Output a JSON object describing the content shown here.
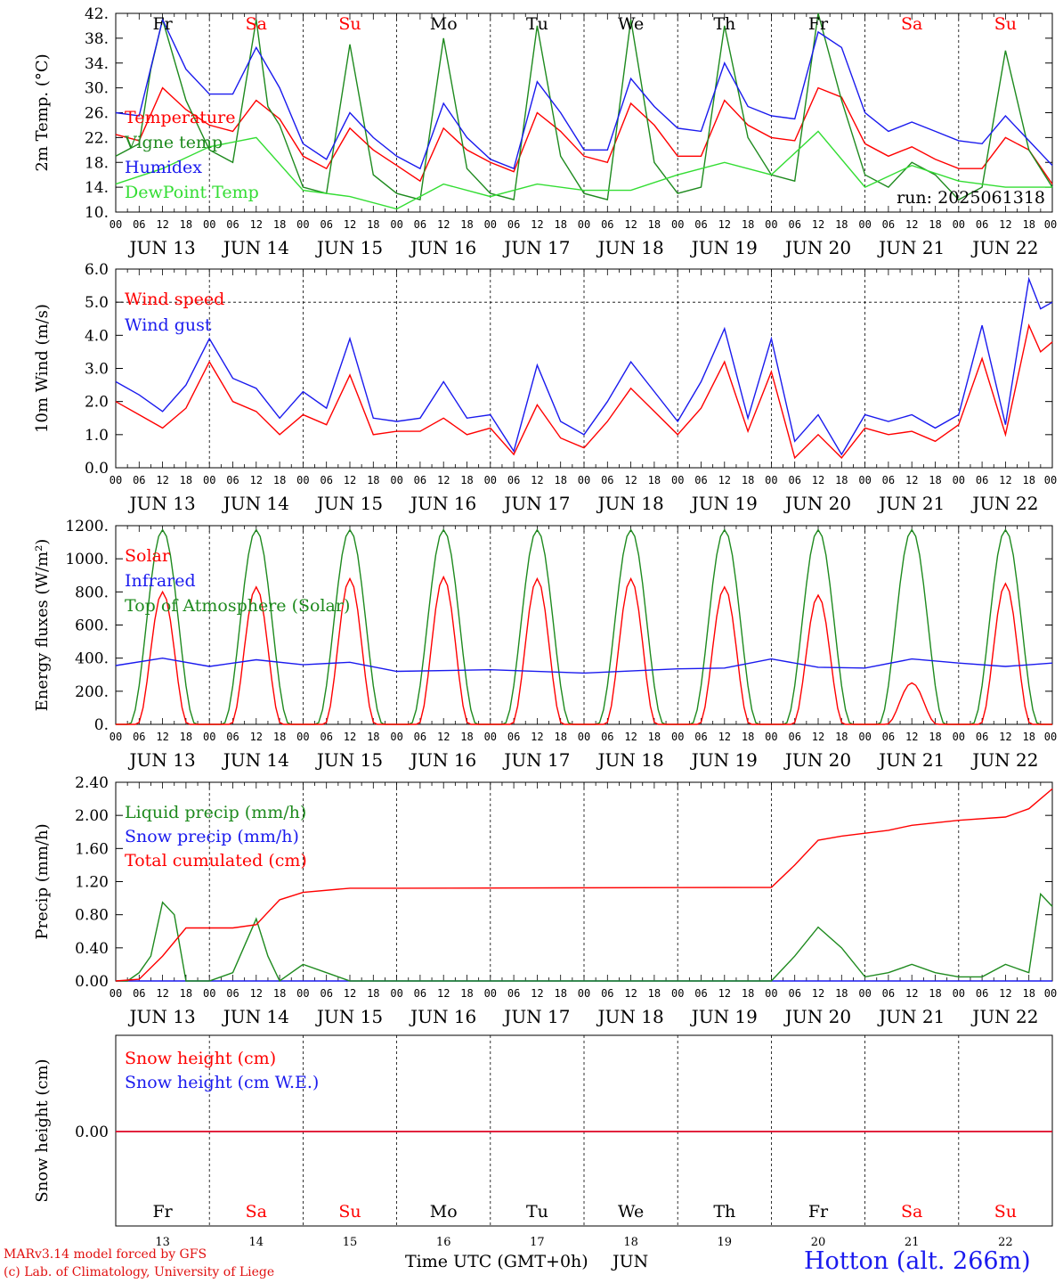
{
  "chart_data": [
    {
      "type": "line",
      "ylabel": "2m Temp. (°C)",
      "ylim": [
        10,
        42
      ],
      "yticks": [
        "10.",
        "14.",
        "18.",
        "22.",
        "26.",
        "30.",
        "34.",
        "38.",
        "42."
      ],
      "grid": "dashed vertical at day boundaries",
      "legend_placement": "left",
      "weekday_labels": [
        "Fr",
        "Sa",
        "Su",
        "Mo",
        "Tu",
        "We",
        "Th",
        "Fr",
        "Sa",
        "Su"
      ],
      "annotation": "run: 2025061318",
      "series": [
        {
          "name": "Temperature",
          "color": "#ff0000",
          "x_hours": [
            0,
            6,
            12,
            18,
            24,
            30,
            36,
            42,
            48,
            54,
            60,
            66,
            72,
            78,
            84,
            90,
            96,
            102,
            108,
            114,
            120,
            126,
            132,
            138,
            144,
            150,
            156,
            162,
            168,
            174,
            180,
            186,
            192,
            198,
            204,
            210,
            216,
            222,
            228,
            234,
            240
          ],
          "values": [
            22.5,
            21.5,
            30,
            26.5,
            24,
            23,
            28,
            25,
            19,
            17,
            23.5,
            20,
            17.5,
            15,
            23.5,
            20,
            18,
            16.5,
            26,
            23,
            19,
            18,
            27.5,
            24,
            19,
            19,
            28,
            24,
            22,
            21.5,
            30,
            28.5,
            21,
            19,
            20.5,
            18.5,
            17,
            17,
            22,
            20,
            14.5
          ]
        },
        {
          "name": "Vigne temp",
          "color": "#1e8a1e",
          "x_hours": [
            0,
            6,
            9,
            12,
            18,
            24,
            30,
            36,
            39,
            42,
            48,
            54,
            60,
            66,
            72,
            78,
            84,
            90,
            96,
            102,
            108,
            114,
            120,
            126,
            132,
            138,
            144,
            150,
            156,
            162,
            168,
            174,
            180,
            186,
            192,
            198,
            204,
            210,
            216,
            222,
            228,
            234,
            240
          ],
          "values": [
            19,
            21,
            33,
            41,
            28,
            20,
            18,
            41,
            27,
            24,
            14,
            13,
            37,
            16,
            13,
            12,
            38,
            17,
            13,
            12,
            40,
            19,
            13,
            12,
            41,
            18,
            13,
            14,
            40,
            22,
            16,
            15,
            42,
            28,
            16,
            14,
            18,
            16,
            12,
            14,
            36,
            20,
            14
          ]
        },
        {
          "name": "Humidex",
          "color": "#1a1aee",
          "x_hours": [
            0,
            6,
            12,
            18,
            24,
            30,
            36,
            42,
            48,
            54,
            60,
            66,
            72,
            78,
            84,
            90,
            96,
            102,
            108,
            114,
            120,
            126,
            132,
            138,
            144,
            150,
            156,
            162,
            168,
            174,
            180,
            186,
            192,
            198,
            204,
            210,
            216,
            222,
            228,
            234,
            240
          ],
          "values": [
            26,
            25.5,
            41,
            33,
            29,
            29,
            36.5,
            30,
            21,
            18.5,
            26,
            22,
            19,
            17,
            27.5,
            22,
            18.5,
            17,
            31,
            26,
            20,
            20,
            31.5,
            27,
            23.5,
            23,
            34,
            27,
            25.5,
            25,
            39,
            36.5,
            26,
            23,
            24.5,
            23,
            21.5,
            21,
            25.5,
            21.5,
            17.5
          ]
        },
        {
          "name": "DewPoint Temp",
          "color": "#33dd33",
          "x_hours": [
            0,
            12,
            24,
            36,
            48,
            60,
            72,
            84,
            96,
            108,
            120,
            132,
            144,
            156,
            168,
            180,
            192,
            204,
            216,
            228,
            240
          ],
          "values": [
            14.5,
            17,
            20.5,
            22,
            13.5,
            12.5,
            10.5,
            14.5,
            12.5,
            14.5,
            13.5,
            13.5,
            16,
            18,
            16,
            23,
            14,
            17.5,
            15,
            14,
            14
          ]
        }
      ]
    },
    {
      "type": "line",
      "ylabel": "10m Wind (m/s)",
      "ylim": [
        0,
        6
      ],
      "yticks": [
        "0.0",
        "1.0",
        "2.0",
        "3.0",
        "4.0",
        "5.0",
        "6.0"
      ],
      "ref_line": 5.0,
      "legend_placement": "left",
      "series": [
        {
          "name": "Wind speed",
          "color": "#ff0000",
          "x_hours": [
            0,
            6,
            12,
            18,
            24,
            30,
            36,
            42,
            48,
            54,
            60,
            66,
            72,
            78,
            84,
            90,
            96,
            102,
            108,
            114,
            120,
            126,
            132,
            138,
            144,
            150,
            156,
            162,
            168,
            174,
            180,
            186,
            192,
            198,
            204,
            210,
            216,
            222,
            228,
            234,
            237,
            240
          ],
          "values": [
            2.0,
            1.6,
            1.2,
            1.8,
            3.2,
            2.0,
            1.7,
            1.0,
            1.6,
            1.3,
            2.8,
            1.0,
            1.1,
            1.1,
            1.5,
            1.0,
            1.2,
            0.4,
            1.9,
            0.9,
            0.6,
            1.4,
            2.4,
            1.7,
            1.0,
            1.8,
            3.2,
            1.1,
            2.9,
            0.3,
            1.0,
            0.3,
            1.2,
            1.0,
            1.1,
            0.8,
            1.3,
            3.3,
            1.0,
            4.3,
            3.5,
            3.8
          ]
        },
        {
          "name": "Wind gust",
          "color": "#1a1aee",
          "x_hours": [
            0,
            6,
            12,
            18,
            24,
            30,
            36,
            42,
            48,
            54,
            60,
            66,
            72,
            78,
            84,
            90,
            96,
            102,
            108,
            114,
            120,
            126,
            132,
            138,
            144,
            150,
            156,
            162,
            168,
            174,
            180,
            186,
            192,
            198,
            204,
            210,
            216,
            222,
            228,
            234,
            237,
            240
          ],
          "values": [
            2.6,
            2.2,
            1.7,
            2.5,
            3.9,
            2.7,
            2.4,
            1.5,
            2.3,
            1.8,
            3.9,
            1.5,
            1.4,
            1.5,
            2.6,
            1.5,
            1.6,
            0.5,
            3.1,
            1.4,
            1.0,
            2.0,
            3.2,
            2.3,
            1.4,
            2.6,
            4.2,
            1.5,
            3.9,
            0.8,
            1.6,
            0.4,
            1.6,
            1.4,
            1.6,
            1.2,
            1.6,
            4.3,
            1.3,
            5.7,
            4.8,
            5.0
          ]
        }
      ]
    },
    {
      "type": "line",
      "ylabel": "Energy fluxes (W/m²)",
      "ylim": [
        0,
        1200
      ],
      "yticks": [
        "0.",
        "200.",
        "400.",
        "600.",
        "800.",
        "1000.",
        "1200."
      ],
      "legend_placement": "left",
      "series": [
        {
          "name": "Solar",
          "color": "#ff0000",
          "day_peaks": [
            800,
            830,
            880,
            890,
            880,
            880,
            830,
            780,
            250,
            850
          ]
        },
        {
          "name": "Infrared",
          "color": "#1a1aee",
          "x_hours": [
            0,
            12,
            24,
            36,
            48,
            60,
            72,
            96,
            120,
            144,
            156,
            168,
            180,
            192,
            204,
            216,
            228,
            240
          ],
          "values": [
            355,
            400,
            350,
            390,
            360,
            375,
            320,
            330,
            310,
            335,
            340,
            395,
            345,
            340,
            395,
            370,
            350,
            370
          ]
        },
        {
          "name": "Top of Atmosphere (Solar)",
          "color": "#1e8a1e",
          "day_peaks": [
            1175,
            1175,
            1175,
            1175,
            1175,
            1175,
            1175,
            1175,
            1175,
            1175
          ]
        }
      ]
    },
    {
      "type": "line",
      "ylabel": "Precip (mm/h)",
      "ylim": [
        0,
        2.4
      ],
      "yticks": [
        "0.00",
        "0.40",
        "0.80",
        "1.20",
        "1.60",
        "2.00",
        "2.40"
      ],
      "legend_placement": "left",
      "series": [
        {
          "name": "Liquid precip (mm/h)",
          "color": "#1e8a1e",
          "x_hours": [
            0,
            3,
            6,
            9,
            12,
            15,
            18,
            24,
            30,
            36,
            39,
            42,
            48,
            54,
            60,
            72,
            96,
            120,
            144,
            168,
            174,
            180,
            186,
            192,
            198,
            204,
            210,
            216,
            222,
            228,
            234,
            237,
            240
          ],
          "values": [
            0,
            0,
            0.1,
            0.3,
            0.95,
            0.8,
            0,
            0,
            0.1,
            0.75,
            0.3,
            0,
            0.2,
            0.1,
            0,
            0,
            0,
            0,
            0,
            0,
            0.3,
            0.65,
            0.4,
            0.05,
            0.1,
            0.2,
            0.1,
            0.05,
            0.05,
            0.2,
            0.1,
            1.05,
            0.9
          ]
        },
        {
          "name": "Snow precip (mm/h)",
          "color": "#1a1aee",
          "x_hours": [
            0,
            240
          ],
          "values": [
            0,
            0
          ]
        },
        {
          "name": "Total cumulated (cm)",
          "color": "#ff0000",
          "x_hours": [
            0,
            6,
            12,
            18,
            30,
            36,
            42,
            48,
            60,
            72,
            168,
            174,
            180,
            186,
            198,
            204,
            216,
            228,
            234,
            240
          ],
          "values": [
            0,
            0.02,
            0.3,
            0.64,
            0.64,
            0.68,
            0.98,
            1.07,
            1.12,
            1.12,
            1.13,
            1.4,
            1.7,
            1.75,
            1.82,
            1.88,
            1.94,
            1.98,
            2.08,
            2.32
          ]
        }
      ]
    },
    {
      "type": "line",
      "ylabel": "Snow height (cm)",
      "yticks": [
        "0.00"
      ],
      "legend_placement": "left",
      "weekday_labels": [
        "Fr",
        "Sa",
        "Su",
        "Mo",
        "Tu",
        "We",
        "Th",
        "Fr",
        "Sa",
        "Su"
      ],
      "day_numbers": [
        "13",
        "14",
        "15",
        "16",
        "17",
        "18",
        "19",
        "20",
        "21",
        "22"
      ],
      "series": [
        {
          "name": "Snow height (cm)",
          "color": "#ff0000",
          "x_hours": [
            0,
            240
          ],
          "values": [
            0,
            0
          ]
        },
        {
          "name": "Snow height (cm W.E.)",
          "color": "#1a1aee",
          "x_hours": [
            0,
            240
          ],
          "values": [
            0,
            0
          ]
        }
      ]
    }
  ],
  "x_axis": {
    "hour_labels": [
      "00",
      "06",
      "12",
      "18"
    ],
    "final_hour_label": "00",
    "date_labels": [
      "JUN 13",
      "JUN 14",
      "JUN 15",
      "JUN 16",
      "JUN 17",
      "JUN 18",
      "JUN 19",
      "JUN 20",
      "JUN 21",
      "JUN 22"
    ]
  },
  "footer": {
    "credit_line1": "MARv3.14 model forced by GFS",
    "credit_line2": "(c) Lab. of Climatology, University of Liege",
    "x_title": "Time UTC (GMT+0h)",
    "month": "JUN",
    "station": "Hotton (alt. 266m)"
  },
  "colors": {
    "weekend": "#ff0000",
    "weekday": "#000000"
  }
}
